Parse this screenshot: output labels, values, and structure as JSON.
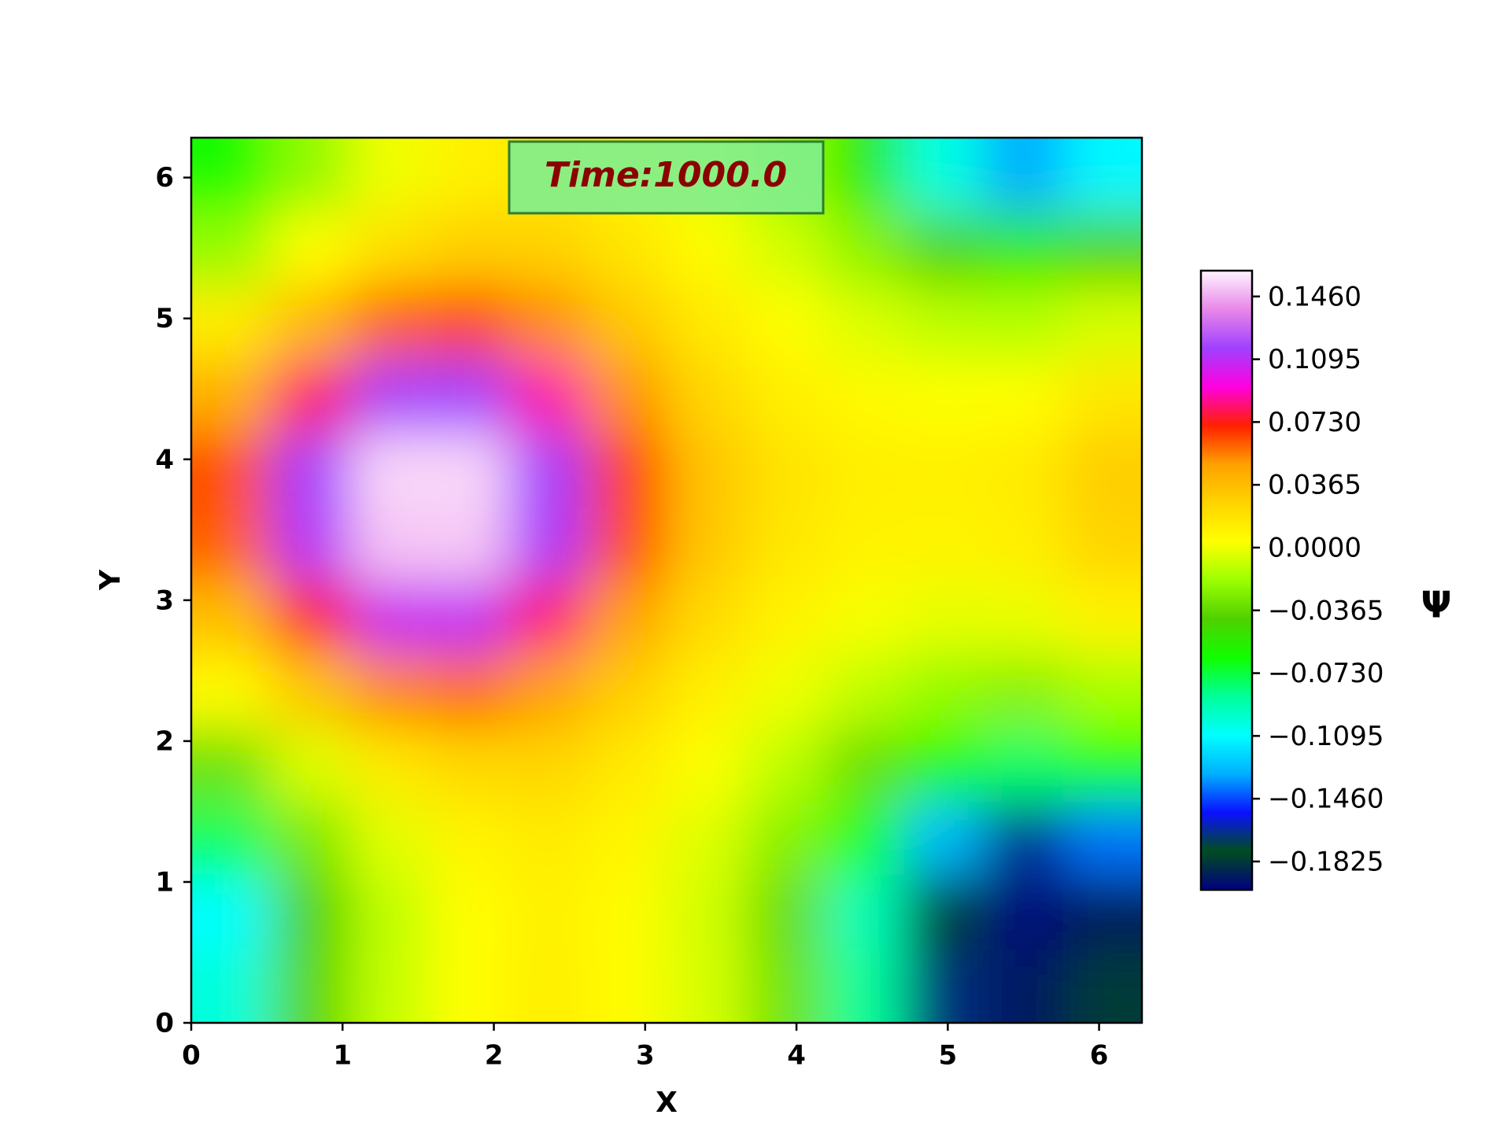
{
  "chart_data": {
    "type": "contour",
    "title": "Time:1000.0",
    "xlabel": "X",
    "ylabel": "Y",
    "colorbar_label": "Ψ",
    "x": [
      0.26,
      0.79,
      1.31,
      1.83,
      2.36,
      2.88,
      3.4,
      3.93,
      4.45,
      4.97,
      5.5,
      6.02
    ],
    "y": [
      0.26,
      0.79,
      1.31,
      1.83,
      2.36,
      2.88,
      3.4,
      3.93,
      4.45,
      4.97,
      5.5,
      6.02
    ],
    "z": [
      [
        -0.101,
        -0.039,
        -0.01,
        0.004,
        0.012,
        0.005,
        -0.006,
        -0.032,
        -0.087,
        -0.167,
        -0.192,
        -0.182
      ],
      [
        -0.109,
        -0.042,
        -0.011,
        0.004,
        0.011,
        0.005,
        -0.007,
        -0.035,
        -0.094,
        -0.18,
        -0.198,
        -0.19
      ],
      [
        -0.077,
        -0.029,
        -0.003,
        0.009,
        0.014,
        0.008,
        -0.004,
        -0.025,
        -0.068,
        -0.128,
        -0.165,
        -0.14
      ],
      [
        -0.033,
        -0.004,
        0.015,
        0.024,
        0.025,
        0.015,
        0.003,
        -0.012,
        -0.034,
        -0.062,
        -0.079,
        -0.066
      ],
      [
        0.005,
        0.032,
        0.053,
        0.058,
        0.048,
        0.028,
        0.012,
        0.0,
        -0.011,
        -0.021,
        -0.025,
        -0.016
      ],
      [
        0.036,
        0.075,
        0.106,
        0.108,
        0.083,
        0.048,
        0.023,
        0.01,
        0.002,
        -0.002,
        -0.001,
        0.01
      ],
      [
        0.06,
        0.111,
        0.151,
        0.152,
        0.113,
        0.064,
        0.032,
        0.016,
        0.01,
        0.009,
        0.012,
        0.026
      ],
      [
        0.063,
        0.115,
        0.155,
        0.155,
        0.115,
        0.066,
        0.033,
        0.018,
        0.012,
        0.011,
        0.014,
        0.029
      ],
      [
        0.042,
        0.082,
        0.114,
        0.116,
        0.088,
        0.051,
        0.025,
        0.012,
        0.006,
        0.003,
        0.004,
        0.016
      ],
      [
        0.013,
        0.039,
        0.06,
        0.065,
        0.052,
        0.031,
        0.015,
        0.004,
        -0.005,
        -0.012,
        -0.014,
        -0.006
      ],
      [
        -0.021,
        0.004,
        0.02,
        0.028,
        0.027,
        0.017,
        0.005,
        -0.007,
        -0.024,
        -0.044,
        -0.055,
        -0.045
      ],
      [
        -0.062,
        -0.022,
        0.0,
        0.011,
        0.016,
        0.009,
        -0.002,
        -0.02,
        -0.055,
        -0.103,
        -0.132,
        -0.111
      ]
    ],
    "xlim": [
      0,
      6.283
    ],
    "ylim": [
      0,
      6.283
    ],
    "xticks": [
      0,
      1,
      2,
      3,
      4,
      5,
      6
    ],
    "yticks": [
      0,
      1,
      2,
      3,
      4,
      5,
      6
    ],
    "clim": [
      -0.199,
      0.161
    ],
    "cticks": [
      {
        "value": -0.1825,
        "label": "−0.1825"
      },
      {
        "value": -0.146,
        "label": "−0.1460"
      },
      {
        "value": -0.1095,
        "label": "−0.1095"
      },
      {
        "value": -0.073,
        "label": "−0.0730"
      },
      {
        "value": -0.0365,
        "label": "−0.0365"
      },
      {
        "value": 0,
        "label": "0.0000"
      },
      0.0365,
      {
        "value": 0.073,
        "label": "0.0730"
      },
      0.1095,
      {
        "value": 0.146,
        "label": "0.1460"
      }
    ],
    "colormap": [
      "#000080",
      "#004d20",
      "#0a10ff",
      "#00b0ff",
      "#00ffff",
      "#00ff9a",
      "#10ff00",
      "#50d000",
      "#9cff00",
      "#ffff00",
      "#ffd400",
      "#ffa000",
      "#ff2000",
      "#ff00e0",
      "#a040ff",
      "#e888e8",
      "#fff5ff"
    ]
  }
}
